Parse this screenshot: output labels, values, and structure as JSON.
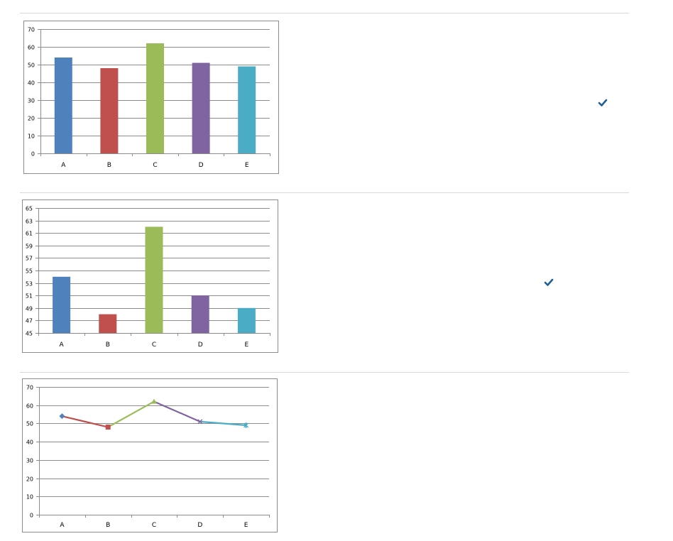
{
  "chart_data": [
    {
      "type": "bar",
      "categories": [
        "A",
        "B",
        "C",
        "D",
        "E"
      ],
      "values": [
        54,
        48,
        62,
        51,
        49
      ],
      "colors": [
        "#4f81bd",
        "#c0504d",
        "#9bbb59",
        "#8064a2",
        "#4bacc6"
      ],
      "ylim": [
        0,
        70
      ],
      "yticks": [
        0,
        10,
        20,
        30,
        40,
        50,
        60,
        70
      ],
      "grid": true,
      "legend": "none",
      "selected": true
    },
    {
      "type": "bar",
      "categories": [
        "A",
        "B",
        "C",
        "D",
        "E"
      ],
      "values": [
        54,
        48,
        62,
        51,
        49
      ],
      "colors": [
        "#4f81bd",
        "#c0504d",
        "#9bbb59",
        "#8064a2",
        "#4bacc6"
      ],
      "ylim": [
        45,
        65
      ],
      "yticks": [
        45,
        47,
        49,
        51,
        53,
        55,
        57,
        59,
        61,
        63,
        65
      ],
      "grid": true,
      "legend": "none",
      "selected": true
    },
    {
      "type": "line",
      "categories": [
        "A",
        "B",
        "C",
        "D",
        "E"
      ],
      "values": [
        54,
        48,
        62,
        51,
        49
      ],
      "colors": [
        "#4f81bd",
        "#c0504d",
        "#9bbb59",
        "#8064a2",
        "#4bacc6"
      ],
      "markers": [
        "diamond",
        "square",
        "triangle",
        "x",
        "star"
      ],
      "ylim": [
        0,
        70
      ],
      "yticks": [
        0,
        10,
        20,
        30,
        40,
        50,
        60,
        70
      ],
      "grid": true,
      "legend": "none",
      "selected": false
    }
  ],
  "checkmark": {
    "icon": "checkmark-icon",
    "color": "#1f5f9a"
  }
}
